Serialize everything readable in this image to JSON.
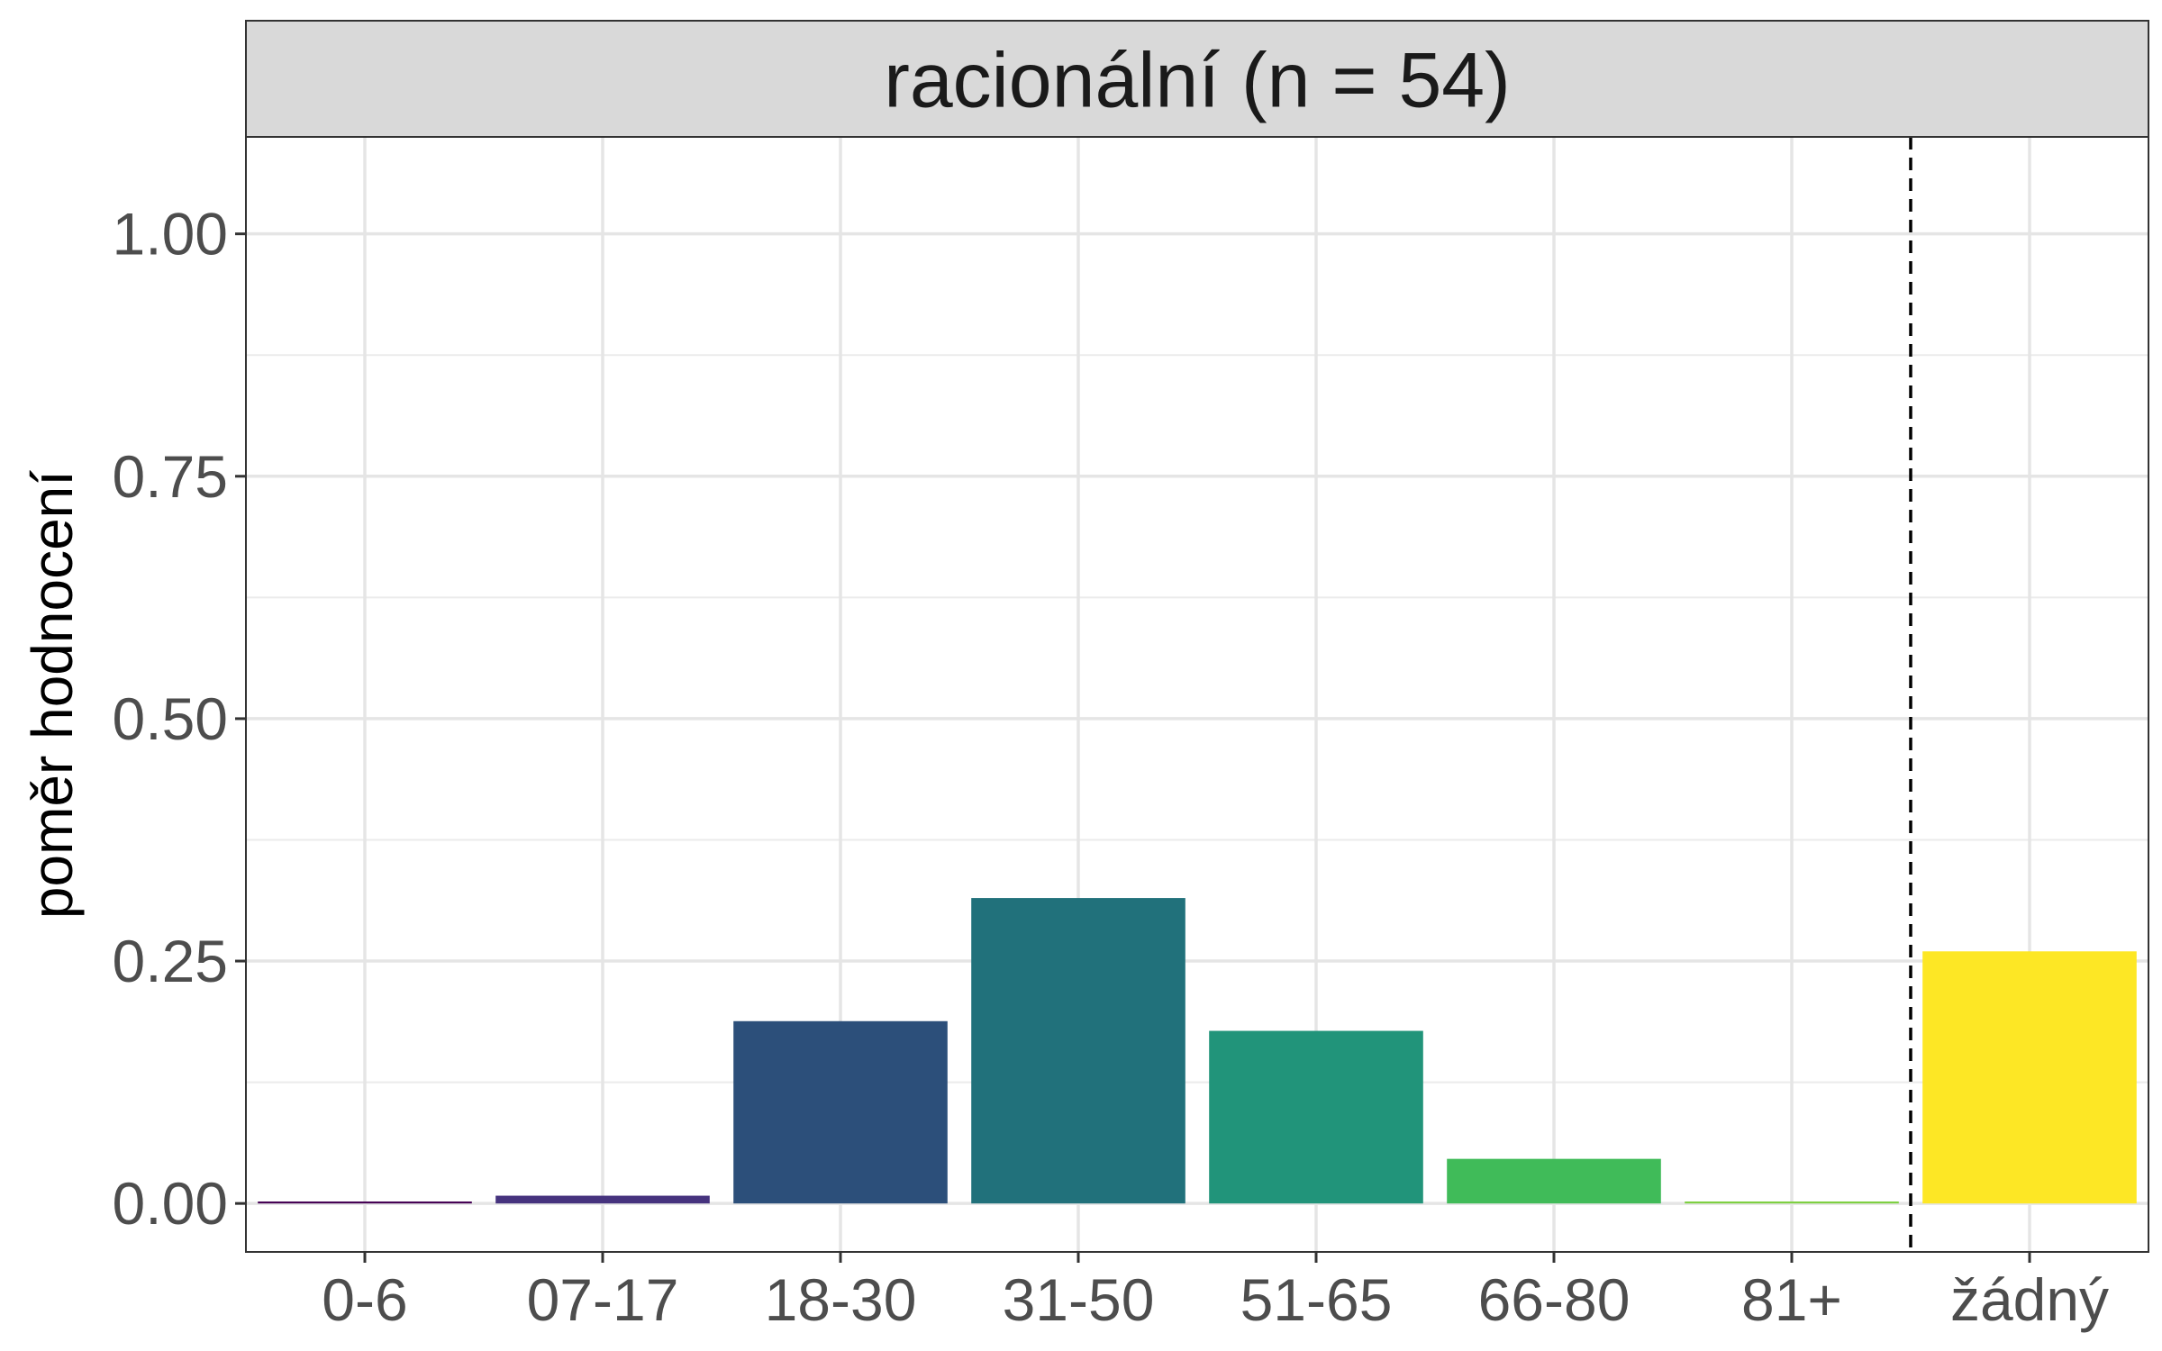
{
  "chart_data": {
    "type": "bar",
    "panel_title": "racionální (n = 54)",
    "xlabel": "",
    "ylabel": "poměr hodnocení",
    "ylim": [
      -0.05,
      1.1
    ],
    "yticks": [
      0.0,
      0.25,
      0.5,
      0.75,
      1.0
    ],
    "ytick_labels": [
      "0.00",
      "0.25",
      "0.50",
      "0.75",
      "1.00"
    ],
    "categories": [
      "0-6",
      "07-17",
      "18-30",
      "31-50",
      "51-65",
      "66-80",
      "81+",
      "žádný"
    ],
    "values": [
      0.002,
      0.008,
      0.188,
      0.315,
      0.178,
      0.046,
      0.002,
      0.26
    ],
    "colors": [
      "#440154",
      "#46337E",
      "#2C4F7A",
      "#21717B",
      "#21947A",
      "#40BB59",
      "#7DD040",
      "#FDE725"
    ],
    "reference_line": {
      "style": "dashed",
      "between": [
        "81+",
        "žádný"
      ]
    },
    "grid": true,
    "legend": "none"
  }
}
